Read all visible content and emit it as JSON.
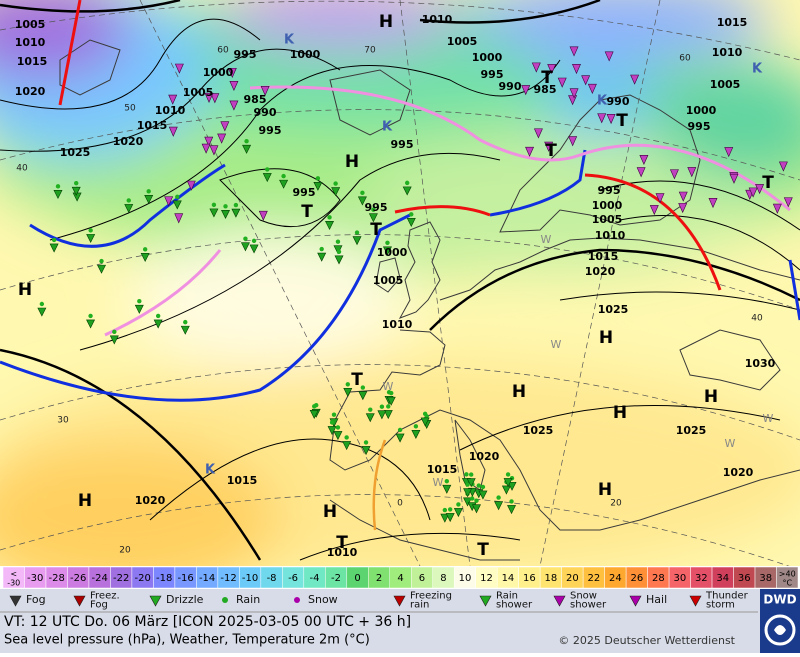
{
  "map": {
    "isobar_labels": [
      "1005",
      "1010",
      "1015",
      "1020",
      "1025",
      "1020",
      "1015",
      "1010",
      "1005",
      "1000",
      "995",
      "1000",
      "1005",
      "1010",
      "1015",
      "1010",
      "1005",
      "1000",
      "995",
      "990",
      "985",
      "990",
      "995",
      "1000",
      "995",
      "990",
      "985",
      "995",
      "995",
      "995",
      "1000",
      "1005",
      "1010",
      "995",
      "1000",
      "1005",
      "1010",
      "1015",
      "1020",
      "1025",
      "1030",
      "1025",
      "1020",
      "1025",
      "1020",
      "1015",
      "1015",
      "1020",
      "1010"
    ],
    "pressure_centers": [
      "H",
      "H",
      "H",
      "H",
      "H",
      "H",
      "H",
      "H",
      "H",
      "H",
      "K",
      "K",
      "K",
      "K",
      "K",
      "T",
      "T",
      "T",
      "T",
      "T",
      "T",
      "T",
      "T",
      "T"
    ],
    "grid_labels": [
      "70",
      "60",
      "50",
      "40",
      "30",
      "20",
      "60",
      "40",
      "20",
      "0"
    ],
    "other_marks": [
      "W",
      "W",
      "W",
      "W",
      "W",
      "W"
    ]
  },
  "color_scale": {
    "labels": [
      "<\n-30",
      "-30",
      "-28",
      "-26",
      "-24",
      "-22",
      "-20",
      "-18",
      "-16",
      "-14",
      "-12",
      "-10",
      "-8",
      "-6",
      "-4",
      "-2",
      "0",
      "2",
      "4",
      "6",
      "8",
      "10",
      "12",
      "14",
      "16",
      "18",
      "20",
      "22",
      "24",
      "26",
      "28",
      "30",
      "32",
      "34",
      "36",
      "38",
      ">40\n°C"
    ],
    "colors": [
      "#f2b8f8",
      "#e89cf0",
      "#dc8ce8",
      "#cc7ce0",
      "#b870dc",
      "#a070e0",
      "#8c78f0",
      "#7c86ff",
      "#7898ff",
      "#74aaff",
      "#70bcff",
      "#6ccaf8",
      "#70d8ec",
      "#74e4dc",
      "#70e8c4",
      "#6ce4a4",
      "#5cd470",
      "#80e070",
      "#a0ec7c",
      "#c0f098",
      "#dcf8bc",
      "#fcfce8",
      "#fffcc4",
      "#fff8a8",
      "#fff08c",
      "#ffe470",
      "#ffd458",
      "#ffc040",
      "#ffa830",
      "#ff9038",
      "#ff7850",
      "#f46468",
      "#e45068",
      "#d0405c",
      "#c04850",
      "#a86868",
      "#a08888"
    ]
  },
  "legend": [
    "Fog",
    "Freez.\nFog",
    "Drizzle",
    "Rain",
    "Snow",
    "Freezing\nrain",
    "Rain\nshower",
    "Snow\nshower",
    "Hail",
    "Thunder\nstorm"
  ],
  "footer": {
    "valid_time": "VT: 12 UTC Do.  06 März [ICON 2025-03-05  00 UTC + 36 h]",
    "description": "Sea level pressure (hPa), Weather, Temperature 2m (°C)",
    "copyright": "© 2025 Deutscher Wetterdienst",
    "logo": "DWD"
  }
}
